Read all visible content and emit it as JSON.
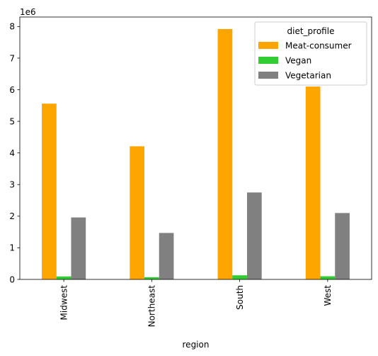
{
  "chart_data": {
    "type": "bar",
    "categories": [
      "Midwest",
      "Northeast",
      "South",
      "West"
    ],
    "series": [
      {
        "name": "Meat-consumer",
        "color": "#ffa500",
        "values": [
          5560000,
          4210000,
          7920000,
          6100000
        ]
      },
      {
        "name": "Vegan",
        "color": "#32cd32",
        "values": [
          95000,
          70000,
          130000,
          100000
        ]
      },
      {
        "name": "Vegetarian",
        "color": "#808080",
        "values": [
          1960000,
          1470000,
          2750000,
          2100000
        ]
      }
    ],
    "xlabel": "region",
    "ylabel": "",
    "ylim": [
      0,
      8300000
    ],
    "y_ticks": [
      "0",
      "1",
      "2",
      "3",
      "4",
      "5",
      "6",
      "7",
      "8"
    ],
    "y_offset_label": "1e6",
    "legend": {
      "title": "diet_profile",
      "placement": "top-right"
    },
    "grid": false
  }
}
